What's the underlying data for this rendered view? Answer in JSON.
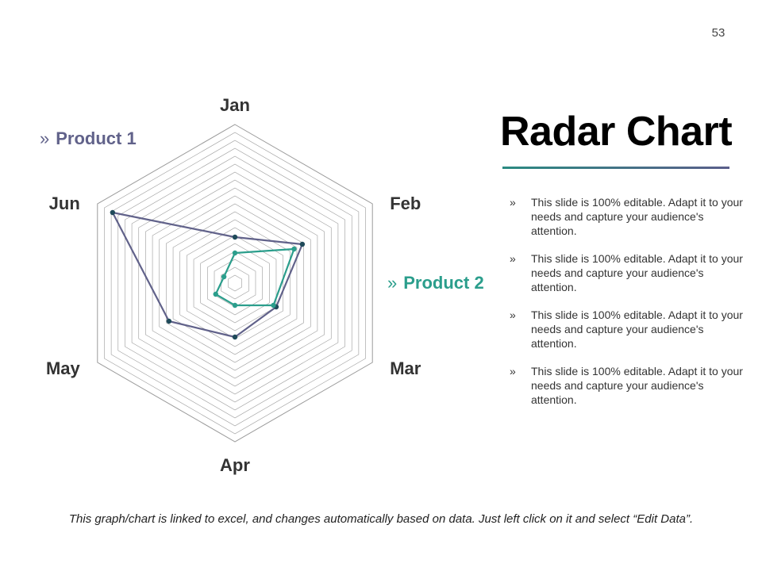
{
  "page_number": "53",
  "title": "Radar Chart",
  "colors": {
    "product1": "#61628a",
    "product2": "#2b9e8c",
    "grid": "#9a9a9a"
  },
  "legend_marker": "»",
  "bullets": [
    "This slide is 100% editable. Adapt it to your needs and capture your audience's attention.",
    "This slide is 100% editable. Adapt it to your needs and capture your audience's attention.",
    "This slide is 100% editable. Adapt it to your needs and capture your audience's attention.",
    "This slide is 100% editable. Adapt it to your needs and capture your audience's attention."
  ],
  "footer": "This graph/chart is linked to excel, and changes automatically based on data. Just left click on it and select “Edit Data”.",
  "chart_data": {
    "type": "radar",
    "categories": [
      "Jan",
      "Feb",
      "Mar",
      "Apr",
      "May",
      "Jun"
    ],
    "series": [
      {
        "name": "Product 1",
        "color": "#61628a",
        "values": [
          2.9,
          4.9,
          3.0,
          3.4,
          4.8,
          8.9
        ]
      },
      {
        "name": "Product 2",
        "color": "#2b9e8c",
        "values": [
          1.9,
          4.3,
          2.8,
          1.4,
          1.4,
          0.8
        ]
      }
    ],
    "rlim": [
      0,
      10
    ],
    "grid_rings": 20,
    "grid": true
  }
}
